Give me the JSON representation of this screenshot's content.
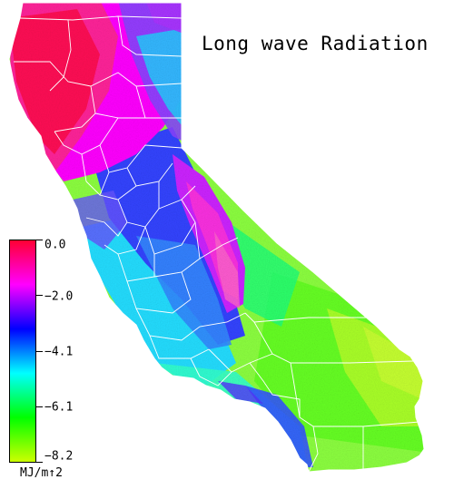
{
  "map": {
    "title": "Long wave Radiation",
    "region": "California",
    "boundaries": "county lines (white)"
  },
  "legend": {
    "unit": "MJ/m↑2",
    "ticks": [
      "0.0",
      "−2.0",
      "−4.1",
      "−6.1",
      "−8.2"
    ],
    "colors": [
      "#ff0033",
      "#ff00ff",
      "#0000ff",
      "#00ffff",
      "#00ff00",
      "#ccff00"
    ]
  }
}
